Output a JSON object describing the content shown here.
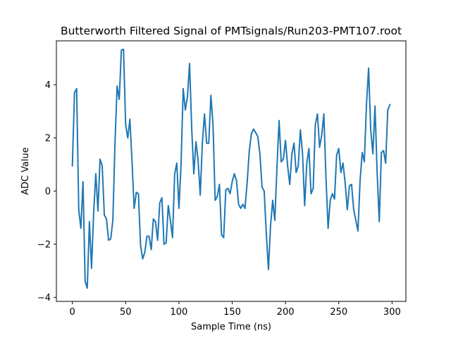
{
  "chart_data": {
    "type": "line",
    "title": "Butterworth Filtered Signal of PMTsignals/Run203-PMT107.root",
    "xlabel": "Sample Time (ns)",
    "ylabel": "ADC Value",
    "xlim": [
      -15,
      313
    ],
    "ylim": [
      -4.15,
      5.65
    ],
    "xticks": [
      0,
      50,
      100,
      150,
      200,
      250,
      300
    ],
    "yticks": [
      -4,
      -2,
      0,
      2,
      4
    ],
    "xtick_labels": [
      "0",
      "50",
      "100",
      "150",
      "200",
      "250",
      "300"
    ],
    "ytick_labels": [
      "−4",
      "−2",
      "0",
      "2",
      "4"
    ],
    "grid": false,
    "series": [
      {
        "color": "#1f77b4",
        "x": [
          0,
          2,
          4,
          6,
          8,
          10,
          12,
          14,
          16,
          18,
          20,
          22,
          24,
          26,
          28,
          30,
          32,
          34,
          36,
          38,
          40,
          42,
          44,
          46,
          48,
          50,
          52,
          54,
          56,
          58,
          60,
          62,
          64,
          66,
          68,
          70,
          72,
          74,
          76,
          78,
          80,
          82,
          84,
          86,
          88,
          90,
          92,
          94,
          96,
          98,
          100,
          102,
          104,
          106,
          108,
          110,
          112,
          114,
          116,
          118,
          120,
          122,
          124,
          126,
          128,
          130,
          132,
          134,
          136,
          138,
          140,
          142,
          144,
          146,
          148,
          150,
          152,
          154,
          156,
          158,
          160,
          162,
          164,
          166,
          168,
          170,
          172,
          174,
          176,
          178,
          180,
          182,
          184,
          186,
          188,
          190,
          192,
          194,
          196,
          198,
          200,
          202,
          204,
          206,
          208,
          210,
          212,
          214,
          216,
          218,
          220,
          222,
          224,
          226,
          228,
          230,
          232,
          234,
          236,
          238,
          240,
          242,
          244,
          246,
          248,
          250,
          252,
          254,
          256,
          258,
          260,
          262,
          264,
          266,
          268,
          270,
          272,
          274,
          276,
          278,
          280,
          282,
          284,
          286,
          288,
          290,
          292,
          294,
          296,
          298
        ],
        "y": [
          0.95,
          3.7,
          3.85,
          -0.7,
          -1.4,
          0.35,
          -3.4,
          -3.65,
          -1.15,
          -2.9,
          -0.8,
          0.65,
          -0.75,
          1.2,
          0.95,
          -0.9,
          -1.05,
          -1.85,
          -1.8,
          -1.1,
          1.8,
          3.95,
          3.45,
          5.3,
          5.33,
          2.5,
          2.0,
          2.7,
          1.1,
          -0.65,
          -0.05,
          -0.1,
          -2.05,
          -2.55,
          -2.3,
          -1.7,
          -1.7,
          -2.2,
          -1.05,
          -1.15,
          -1.85,
          -0.45,
          -0.25,
          -2.0,
          -1.95,
          -0.55,
          -1.1,
          -1.75,
          0.65,
          1.05,
          -0.65,
          1.0,
          3.85,
          3.05,
          3.55,
          4.8,
          2.35,
          0.65,
          1.85,
          1.15,
          -0.15,
          1.8,
          2.9,
          1.8,
          1.8,
          3.6,
          2.5,
          -0.35,
          -0.2,
          0.25,
          -1.65,
          -1.75,
          0.05,
          0.1,
          -0.1,
          0.35,
          0.65,
          0.4,
          -0.5,
          -0.65,
          -0.5,
          -0.65,
          0.3,
          1.5,
          2.15,
          2.33,
          2.2,
          2.05,
          1.4,
          0.15,
          0.0,
          -1.6,
          -2.95,
          -1.3,
          -0.35,
          -1.1,
          0.9,
          2.65,
          1.1,
          1.2,
          1.9,
          0.95,
          0.25,
          1.4,
          1.8,
          0.7,
          0.95,
          2.3,
          1.4,
          -0.55,
          1.05,
          1.6,
          -0.1,
          0.1,
          2.5,
          2.9,
          1.65,
          2.1,
          2.9,
          0.5,
          -1.4,
          -0.35,
          -0.1,
          -0.3,
          1.35,
          1.6,
          0.7,
          1.05,
          0.3,
          -0.7,
          0.2,
          0.25,
          -0.7,
          -1.1,
          -1.5,
          0.4,
          1.45,
          1.1,
          3.25,
          4.62,
          2.3,
          1.4,
          3.2,
          0.7,
          -1.15,
          1.45,
          1.52,
          1.05,
          3.05,
          3.25
        ]
      }
    ]
  }
}
